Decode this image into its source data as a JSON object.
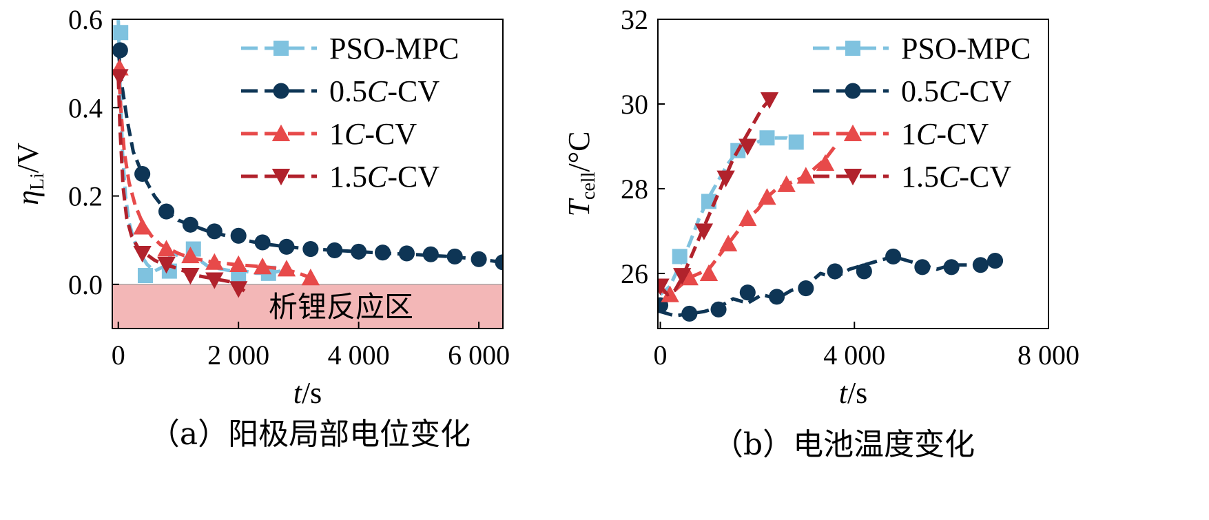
{
  "colors": {
    "PSO-MPC": "#7fc2df",
    "0.5C-CV": "#0e3555",
    "1C-CV": "#e74a4a",
    "1.5C-CV": "#b1222c",
    "region": "#f3b7b7"
  },
  "chart_data": [
    {
      "type": "line",
      "caption": "（a）阳极局部电位变化",
      "xlabel_var": "t",
      "xlabel_unit": "/s",
      "ylabel_var": "η",
      "ylabel_sub": "Li",
      "ylabel_unit": "/V",
      "xlim": [
        -100,
        6400
      ],
      "ylim": [
        -0.1,
        0.6
      ],
      "xticks": [
        0,
        2000,
        4000,
        6000
      ],
      "xtick_labels": [
        "0",
        "2 000",
        "4 000",
        "6 000"
      ],
      "yticks": [
        0.0,
        0.2,
        0.4,
        0.6
      ],
      "ytick_labels": [
        "0.0",
        "0.2",
        "0.4",
        "0.6"
      ],
      "legend_position": "top-right",
      "region": {
        "label": "析锂反应区",
        "y_from": -0.1,
        "y_to": 0.0
      },
      "series": [
        {
          "name": "PSO-MPC",
          "marker": "square",
          "x": [
            0,
            30,
            70,
            120,
            180,
            260,
            360,
            480,
            600,
            750,
            900,
            1100,
            1300,
            1500,
            1700,
            1900,
            2100,
            2300,
            2500,
            2700
          ],
          "y": [
            0.6,
            0.45,
            0.3,
            0.2,
            0.14,
            0.1,
            0.07,
            0.045,
            0.03,
            0.04,
            0.07,
            0.06,
            0.06,
            0.04,
            0.035,
            0.03,
            0.03,
            0.025,
            0.025,
            0.03
          ],
          "marker_x": [
            40,
            450,
            850,
            1250,
            2000,
            2500
          ],
          "marker_y": [
            0.57,
            0.02,
            0.03,
            0.08,
            0.02,
            0.025
          ]
        },
        {
          "name": "0.5C-CV",
          "marker": "circle",
          "x": [
            0,
            60,
            150,
            250,
            400,
            600,
            800,
            1000,
            1200,
            1500,
            1800,
            2100,
            2400,
            2800,
            3200,
            3600,
            4000,
            4500,
            5000,
            5500,
            6000,
            6400
          ],
          "y": [
            0.53,
            0.45,
            0.37,
            0.3,
            0.25,
            0.2,
            0.165,
            0.145,
            0.135,
            0.12,
            0.11,
            0.1,
            0.092,
            0.085,
            0.08,
            0.077,
            0.074,
            0.07,
            0.067,
            0.063,
            0.057,
            0.05
          ],
          "marker_x": [
            30,
            400,
            800,
            1200,
            1600,
            2000,
            2400,
            2800,
            3200,
            3600,
            4000,
            4400,
            4800,
            5200,
            5600,
            6000,
            6400
          ],
          "marker_y": [
            0.53,
            0.25,
            0.165,
            0.135,
            0.12,
            0.11,
            0.095,
            0.085,
            0.08,
            0.077,
            0.074,
            0.072,
            0.07,
            0.068,
            0.063,
            0.057,
            0.05
          ]
        },
        {
          "name": "1C-CV",
          "marker": "triangle-up",
          "x": [
            0,
            40,
            100,
            180,
            280,
            400,
            550,
            700,
            850,
            1000,
            1200,
            1400,
            1600,
            1800,
            2000,
            2200,
            2400,
            2600,
            2800,
            3000,
            3200
          ],
          "y": [
            0.5,
            0.4,
            0.3,
            0.23,
            0.18,
            0.14,
            0.11,
            0.09,
            0.08,
            0.07,
            0.06,
            0.055,
            0.05,
            0.047,
            0.044,
            0.042,
            0.04,
            0.037,
            0.033,
            0.025,
            0.015
          ],
          "marker_x": [
            20,
            400,
            800,
            1200,
            1600,
            2000,
            2400,
            2800,
            3200
          ],
          "marker_y": [
            0.49,
            0.13,
            0.08,
            0.065,
            0.05,
            0.045,
            0.04,
            0.035,
            0.015
          ]
        },
        {
          "name": "1.5C-CV",
          "marker": "triangle-down",
          "x": [
            0,
            30,
            80,
            140,
            220,
            320,
            450,
            600,
            750,
            900,
            1100,
            1300,
            1500,
            1700,
            1900,
            2100
          ],
          "y": [
            0.47,
            0.35,
            0.22,
            0.15,
            0.11,
            0.085,
            0.07,
            0.055,
            0.045,
            0.04,
            0.03,
            0.02,
            0.015,
            0.01,
            0.005,
            -0.015
          ],
          "marker_x": [
            20,
            400,
            800,
            1200,
            1600,
            2000
          ],
          "marker_y": [
            0.47,
            0.07,
            0.045,
            0.02,
            0.01,
            -0.01
          ]
        }
      ]
    },
    {
      "type": "line",
      "caption": "（b）电池温度变化",
      "xlabel_var": "t",
      "xlabel_unit": "/s",
      "ylabel_var": "T",
      "ylabel_sub": "cell",
      "ylabel_unit": "/°C",
      "xlim": [
        -50,
        8000
      ],
      "ylim": [
        24.7,
        32
      ],
      "xticks": [
        0,
        4000,
        8000
      ],
      "xtick_labels": [
        "0",
        "4 000",
        "8 000"
      ],
      "yticks": [
        26,
        28,
        30,
        32
      ],
      "ytick_labels": [
        "26",
        "28",
        "30",
        "32"
      ],
      "legend_position": "top-right",
      "series": [
        {
          "name": "PSO-MPC",
          "marker": "square",
          "x": [
            0,
            200,
            400,
            600,
            800,
            1000,
            1200,
            1400,
            1600,
            1800,
            2000,
            2200,
            2400,
            2600,
            2800
          ],
          "y": [
            25.5,
            25.7,
            26.2,
            26.7,
            27.3,
            27.8,
            28.2,
            28.6,
            28.9,
            29.0,
            29.1,
            29.2,
            29.2,
            29.2,
            29.1
          ],
          "marker_x": [
            400,
            1000,
            1600,
            2200,
            2800
          ],
          "marker_y": [
            26.4,
            27.7,
            28.9,
            29.2,
            29.1
          ]
        },
        {
          "name": "0.5C-CV",
          "marker": "circle",
          "x": [
            0,
            300,
            600,
            900,
            1200,
            1500,
            1800,
            2100,
            2400,
            2700,
            3000,
            3300,
            3600,
            3900,
            4200,
            4500,
            4800,
            5100,
            5400,
            5700,
            6000,
            6300,
            6600,
            6900
          ],
          "y": [
            25.1,
            25.0,
            25.05,
            25.1,
            25.2,
            25.4,
            25.3,
            25.5,
            25.4,
            25.6,
            25.7,
            26.0,
            25.9,
            26.1,
            26.2,
            26.3,
            26.4,
            26.3,
            26.2,
            26.1,
            26.2,
            26.2,
            26.2,
            26.3
          ],
          "marker_x": [
            0,
            600,
            1200,
            1800,
            2400,
            3000,
            3600,
            4200,
            4800,
            5400,
            6000,
            6600,
            6900
          ],
          "marker_y": [
            25.25,
            25.05,
            25.15,
            25.55,
            25.45,
            25.65,
            26.05,
            26.05,
            26.4,
            26.15,
            26.15,
            26.2,
            26.3
          ]
        },
        {
          "name": "1C-CV",
          "marker": "triangle-up",
          "x": [
            0,
            200,
            400,
            600,
            800,
            1000,
            1200,
            1400,
            1600,
            1800,
            2000,
            2200,
            2400,
            2600,
            2800,
            3000,
            3200,
            3400,
            3600
          ],
          "y": [
            25.6,
            25.5,
            25.7,
            25.9,
            26.0,
            26.1,
            26.4,
            26.7,
            27.0,
            27.3,
            27.5,
            27.8,
            28.0,
            28.1,
            28.2,
            28.3,
            28.5,
            28.7,
            29.0
          ],
          "marker_x": [
            200,
            600,
            1000,
            1400,
            1800,
            2200,
            2600,
            3000,
            3400
          ],
          "marker_y": [
            25.5,
            25.9,
            26.0,
            26.7,
            27.3,
            27.8,
            28.1,
            28.3,
            28.6
          ]
        },
        {
          "name": "1.5C-CV",
          "marker": "triangle-down",
          "x": [
            0,
            150,
            300,
            450,
            600,
            750,
            900,
            1050,
            1200,
            1350,
            1500,
            1650,
            1800,
            1950,
            2100,
            2250
          ],
          "y": [
            25.7,
            25.5,
            25.6,
            25.9,
            26.3,
            26.7,
            27.1,
            27.5,
            27.9,
            28.3,
            28.7,
            29.0,
            29.3,
            29.6,
            29.9,
            30.1
          ],
          "marker_x": [
            0,
            450,
            900,
            1350,
            1800,
            2250
          ],
          "marker_y": [
            25.7,
            25.95,
            27.0,
            28.25,
            29.0,
            30.1
          ]
        }
      ]
    }
  ]
}
